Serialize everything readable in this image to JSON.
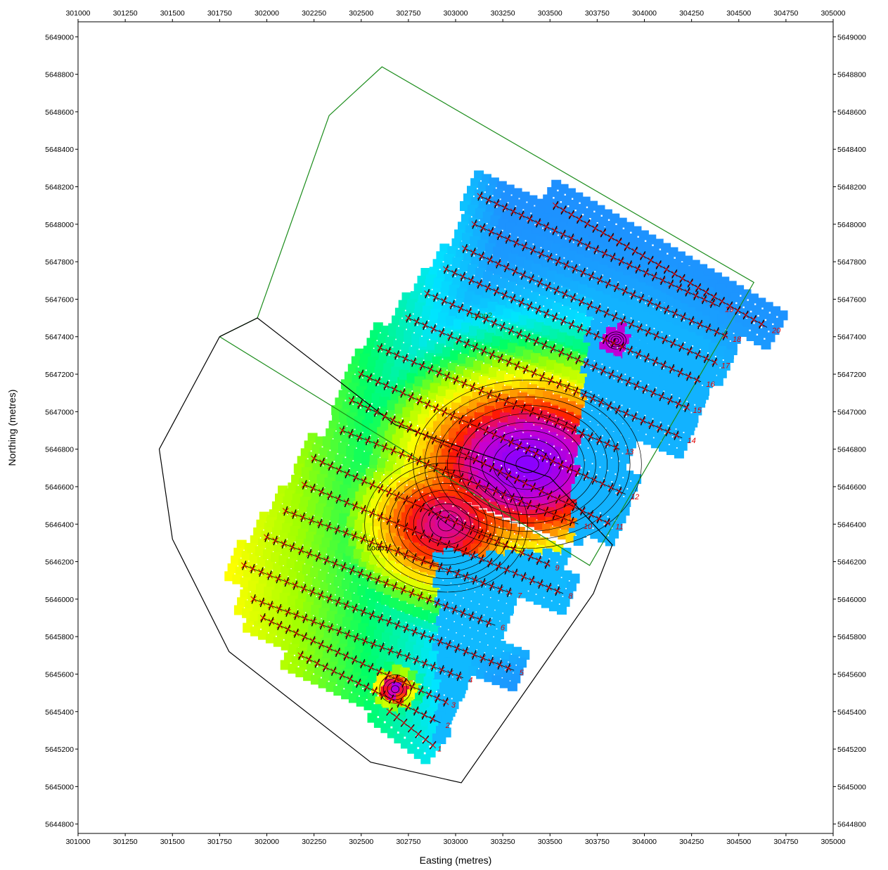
{
  "map": {
    "xlabel": "Easting (metres)",
    "ylabel": "Northing (metres)",
    "xlim": [
      301000,
      305000
    ],
    "ylim": [
      5644750,
      5649080
    ],
    "xticks": [
      301000,
      301250,
      301500,
      301750,
      302000,
      302250,
      302500,
      302750,
      303000,
      303250,
      303500,
      303750,
      304000,
      304250,
      304500,
      304750,
      305000
    ],
    "yticks": [
      5644800,
      5645000,
      5645200,
      5645400,
      5645600,
      5645800,
      5646000,
      5646200,
      5646400,
      5646600,
      5646800,
      5647000,
      5647200,
      5647400,
      5647600,
      5647800,
      5648000,
      5648200,
      5648400,
      5648600,
      5648800,
      5649000
    ],
    "colors": {
      "loop2_outline": "#1a8c1a",
      "loop1_outline": "#000000",
      "station_marker": "#e00000",
      "contour": "#000000",
      "colormap": [
        "#1e90ff",
        "#00e5ff",
        "#00ff66",
        "#a0ff00",
        "#ffff00",
        "#ff9900",
        "#ff1a00",
        "#cc00cc",
        "#8a00ff"
      ]
    },
    "loops": [
      {
        "name": "Loop2",
        "color": "#1a8c1a",
        "label_at": [
          303080,
          5647500
        ],
        "polygon": [
          [
            301750,
            5647400
          ],
          [
            301950,
            5647500
          ],
          [
            302330,
            5648580
          ],
          [
            302610,
            5648840
          ],
          [
            304580,
            5647690
          ],
          [
            303710,
            5646180
          ],
          [
            301750,
            5647400
          ]
        ]
      },
      {
        "name": "Loop1",
        "color": "#000000",
        "label_at": [
          302530,
          5646260
        ],
        "polygon": [
          [
            301750,
            5647400
          ],
          [
            301950,
            5647500
          ],
          [
            302680,
            5646930
          ],
          [
            303500,
            5646650
          ],
          [
            303830,
            5646290
          ],
          [
            303730,
            5646030
          ],
          [
            303030,
            5645020
          ],
          [
            302550,
            5645130
          ],
          [
            301800,
            5645720
          ],
          [
            301500,
            5646320
          ],
          [
            301430,
            5646800
          ],
          [
            301750,
            5647400
          ]
        ]
      }
    ],
    "lines": [
      {
        "label": "1",
        "start": [
          302650,
          5645400
        ],
        "end": [
          302880,
          5645220
        ]
      },
      {
        "label": "2",
        "start": [
          302180,
          5645700
        ],
        "end": [
          302920,
          5645340
        ]
      },
      {
        "label": "3",
        "start": [
          301980,
          5645900
        ],
        "end": [
          302950,
          5645450
        ]
      },
      {
        "label": "4",
        "start": [
          301930,
          5646000
        ],
        "end": [
          303040,
          5645580
        ]
      },
      {
        "label": "5",
        "start": [
          301880,
          5646180
        ],
        "end": [
          303310,
          5645620
        ]
      },
      {
        "label": "6",
        "start": [
          302000,
          5646330
        ],
        "end": [
          303210,
          5645860
        ]
      },
      {
        "label": "7",
        "start": [
          302100,
          5646470
        ],
        "end": [
          303300,
          5646030
        ]
      },
      {
        "label": "8",
        "start": [
          302200,
          5646610
        ],
        "end": [
          303570,
          5646030
        ]
      },
      {
        "label": "9",
        "start": [
          302250,
          5646750
        ],
        "end": [
          303500,
          5646180
        ]
      },
      {
        "label": "10",
        "start": [
          302400,
          5646900
        ],
        "end": [
          303650,
          5646400
        ]
      },
      {
        "label": "11",
        "start": [
          302450,
          5647060
        ],
        "end": [
          303820,
          5646400
        ]
      },
      {
        "label": "12",
        "start": [
          302500,
          5647200
        ],
        "end": [
          303900,
          5646560
        ]
      },
      {
        "label": "13",
        "start": [
          302600,
          5647340
        ],
        "end": [
          303870,
          5646800
        ]
      },
      {
        "label": "14",
        "start": [
          302750,
          5647500
        ],
        "end": [
          304200,
          5646860
        ]
      },
      {
        "label": "15",
        "start": [
          302850,
          5647630
        ],
        "end": [
          304230,
          5647020
        ]
      },
      {
        "label": "16",
        "start": [
          302950,
          5647760
        ],
        "end": [
          304300,
          5647160
        ]
      },
      {
        "label": "17",
        "start": [
          303050,
          5647870
        ],
        "end": [
          304380,
          5647260
        ]
      },
      {
        "label": "18",
        "start": [
          303100,
          5648000
        ],
        "end": [
          304440,
          5647400
        ]
      },
      {
        "label": "19",
        "start": [
          303130,
          5648150
        ],
        "end": [
          304400,
          5647560
        ]
      },
      {
        "label": "20",
        "start": [
          303530,
          5648100
        ],
        "end": [
          304650,
          5647450
        ]
      }
    ],
    "anomalies": [
      {
        "center": [
          303380,
          5646720
        ],
        "strength": 1.0,
        "rx": 700,
        "ry": 520
      },
      {
        "center": [
          302950,
          5646400
        ],
        "strength": 0.85,
        "rx": 500,
        "ry": 420
      },
      {
        "center": [
          302680,
          5645520
        ],
        "strength": 0.95,
        "rx": 110,
        "ry": 100
      },
      {
        "center": [
          303850,
          5647380
        ],
        "strength": 0.9,
        "rx": 70,
        "ry": 60
      }
    ]
  }
}
